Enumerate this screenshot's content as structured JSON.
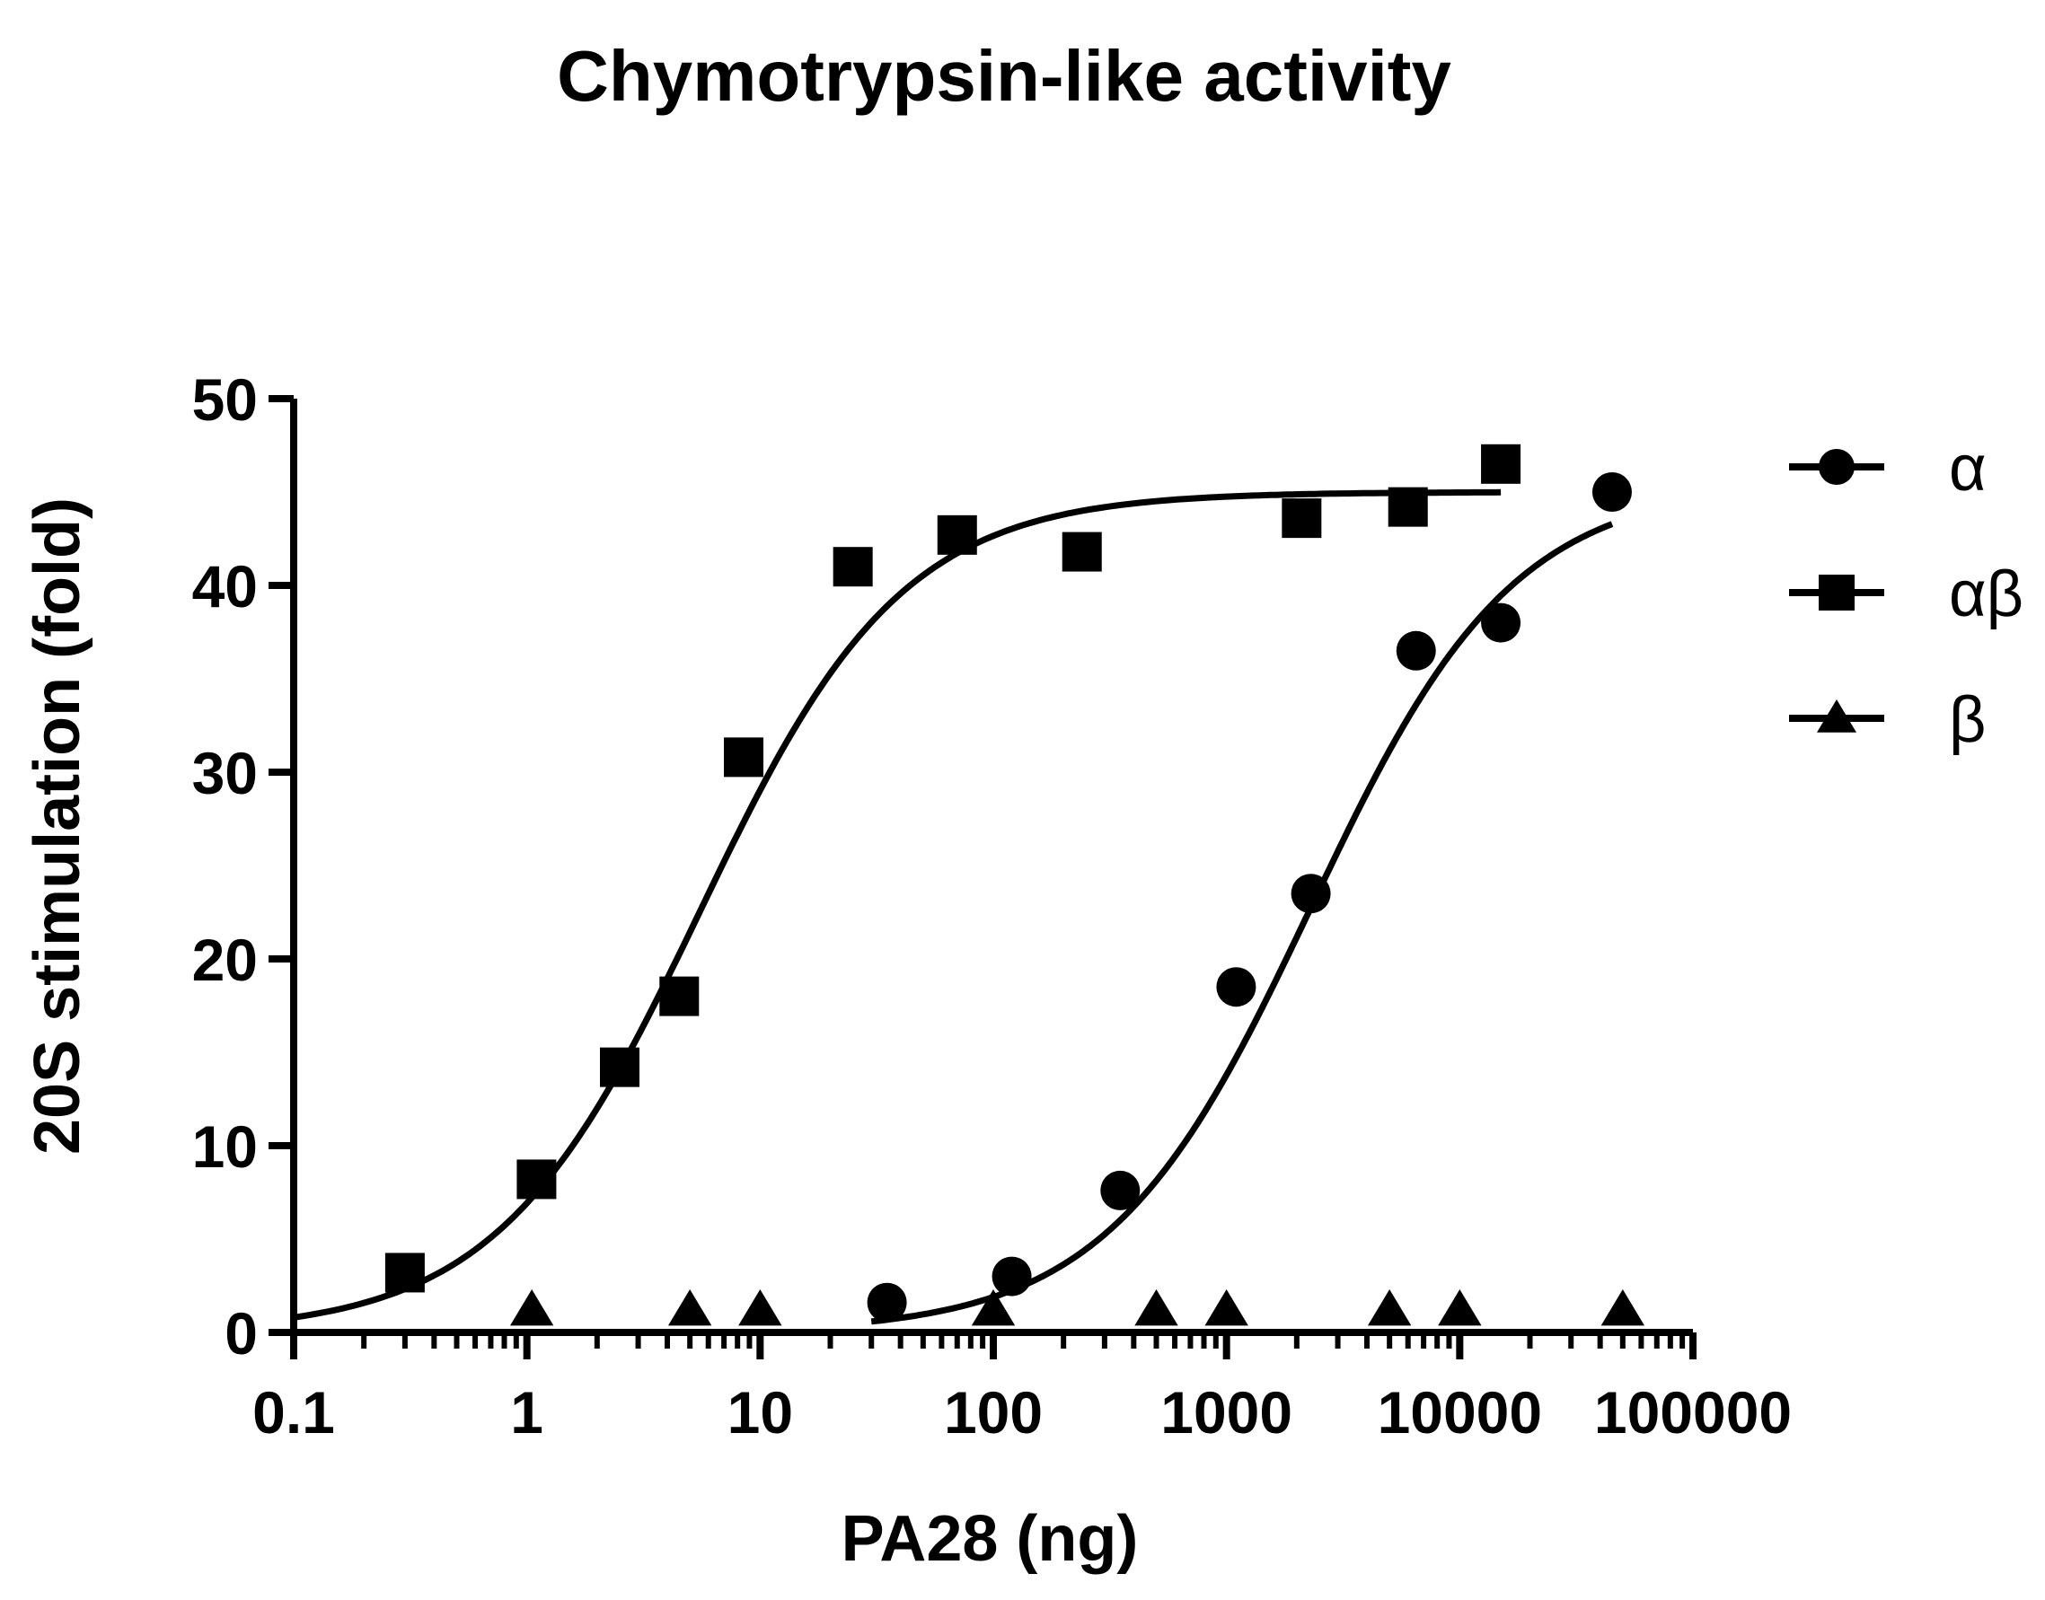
{
  "chart_data": {
    "type": "scatter",
    "title": "Chymotrypsin-like activity",
    "xlabel": "PA28 (ng)",
    "ylabel": "20S stimulation (fold)",
    "xscale": "log",
    "xlim": [
      0.1,
      100000
    ],
    "ylim": [
      0,
      50
    ],
    "xticks": [
      0.1,
      1,
      10,
      100,
      1000,
      10000,
      100000
    ],
    "xtick_labels": [
      "0.1",
      "1",
      "10",
      "100",
      "1000",
      "10000",
      "100000"
    ],
    "yticks": [
      0,
      10,
      20,
      30,
      40,
      50
    ],
    "ytick_labels": [
      "0",
      "10",
      "20",
      "30",
      "40",
      "50"
    ],
    "grid": false,
    "legend_position": "top-right",
    "series": [
      {
        "name": "α",
        "marker": "circle",
        "points": [
          [
            35,
            1.6
          ],
          [
            120,
            3.0
          ],
          [
            350,
            7.6
          ],
          [
            1100,
            18.5
          ],
          [
            2300,
            23.5
          ],
          [
            6500,
            36.5
          ],
          [
            15000,
            38.0
          ],
          [
            45000,
            45.0
          ]
        ],
        "fit": {
          "bottom": 0,
          "top": 45.5,
          "ec50": 2300,
          "hill": 1.0,
          "x_range": [
            30,
            45000
          ]
        }
      },
      {
        "name": "αβ",
        "marker": "square",
        "points": [
          [
            0.3,
            3.2
          ],
          [
            1.1,
            8.2
          ],
          [
            2.5,
            14.2
          ],
          [
            4.5,
            18.0
          ],
          [
            8.5,
            30.8
          ],
          [
            25,
            41.0
          ],
          [
            70,
            42.7
          ],
          [
            240,
            41.8
          ],
          [
            2100,
            43.6
          ],
          [
            6000,
            44.2
          ],
          [
            15000,
            46.5
          ]
        ],
        "fit": {
          "bottom": 0,
          "top": 45,
          "ec50": 5.5,
          "hill": 1.0,
          "x_range": [
            0.1,
            15000
          ]
        }
      },
      {
        "name": "β",
        "marker": "triangle",
        "points": [
          [
            1.05,
            1.2
          ],
          [
            5,
            1.2
          ],
          [
            10,
            1.2
          ],
          [
            100,
            1.2
          ],
          [
            500,
            1.2
          ],
          [
            1000,
            1.2
          ],
          [
            5000,
            1.2
          ],
          [
            10000,
            1.2
          ],
          [
            50000,
            1.2
          ]
        ]
      }
    ]
  }
}
